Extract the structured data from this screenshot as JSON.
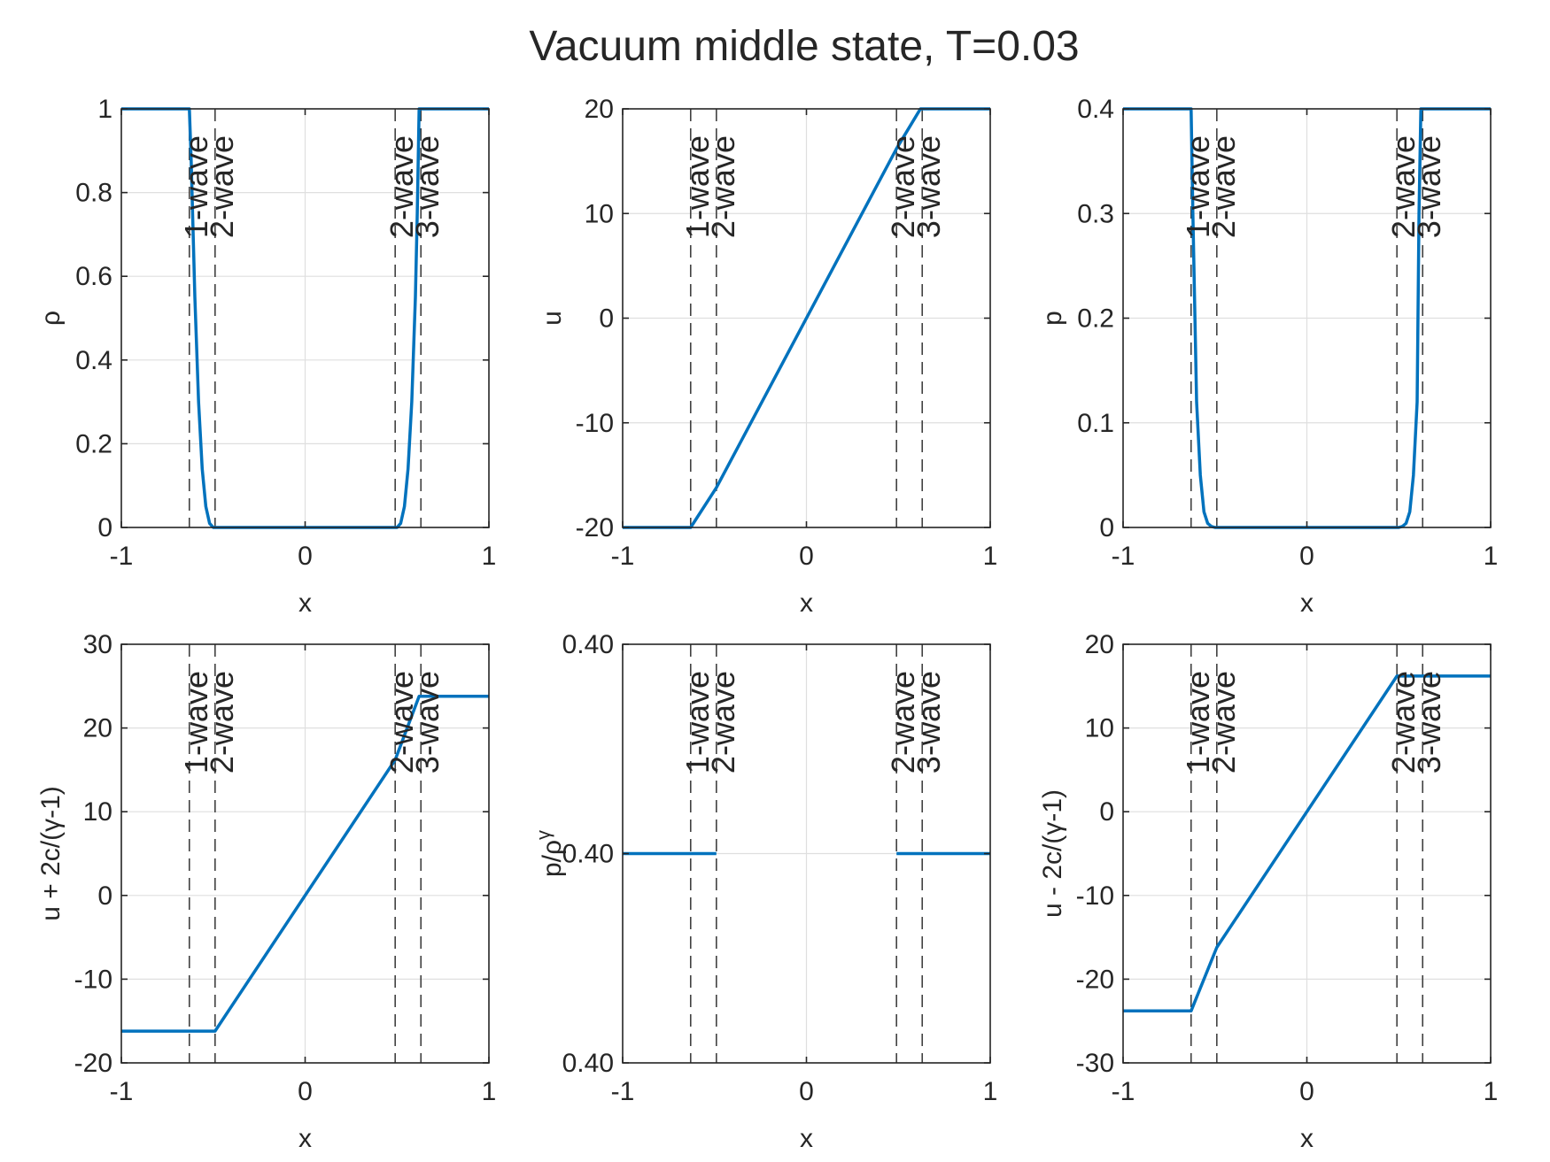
{
  "figure": {
    "title": "Vacuum middle state, T=0.03",
    "colors": {
      "series": "#0072BD",
      "axes": "#262626",
      "grid": "#DFDFDF",
      "wave_line": "#404040",
      "background": "#FFFFFF"
    }
  },
  "chart_data": [
    {
      "type": "line",
      "xlabel": "x",
      "ylabel": "ρ",
      "xlim": [
        -1,
        1
      ],
      "ylim": [
        0,
        1
      ],
      "xticks": [
        "-1",
        "0",
        "1"
      ],
      "yticks": [
        "0",
        "0.2",
        "0.4",
        "0.6",
        "0.8",
        "1"
      ],
      "grid": true,
      "series": [
        {
          "x": [
            -1,
            -0.63,
            -0.62,
            -0.6,
            -0.58,
            -0.56,
            -0.54,
            -0.52,
            -0.5,
            0.5,
            0.52,
            0.54,
            0.56,
            0.58,
            0.6,
            0.61,
            0.62,
            1
          ],
          "y": [
            1,
            1,
            0.88,
            0.55,
            0.3,
            0.14,
            0.05,
            0.01,
            0,
            0,
            0.01,
            0.05,
            0.14,
            0.3,
            0.55,
            0.75,
            1,
            1
          ]
        }
      ],
      "wave_positions": [
        -0.63,
        -0.49,
        0.49,
        0.63
      ],
      "wave_labels": [
        "1-wave",
        "2-wave",
        "2-wave",
        "3-wave"
      ]
    },
    {
      "type": "line",
      "xlabel": "x",
      "ylabel": "u",
      "xlim": [
        -1,
        1
      ],
      "ylim": [
        -20,
        20
      ],
      "xticks": [
        "-1",
        "0",
        "1"
      ],
      "yticks": [
        "-20",
        "-10",
        "0",
        "10",
        "20"
      ],
      "grid": true,
      "series": [
        {
          "x": [
            -1,
            -0.63,
            -0.49,
            0.49,
            0.62,
            1
          ],
          "y": [
            -20,
            -20,
            -16.2,
            16.2,
            20,
            20
          ]
        }
      ],
      "wave_positions": [
        -0.63,
        -0.49,
        0.49,
        0.63
      ],
      "wave_labels": [
        "1-wave",
        "2-wave",
        "2-wave",
        "3-wave"
      ]
    },
    {
      "type": "line",
      "xlabel": "x",
      "ylabel": "p",
      "xlim": [
        -1,
        1
      ],
      "ylim": [
        0,
        0.4
      ],
      "xticks": [
        "-1",
        "0",
        "1"
      ],
      "yticks": [
        "0",
        "0.1",
        "0.2",
        "0.3",
        "0.4"
      ],
      "grid": true,
      "series": [
        {
          "x": [
            -1,
            -0.63,
            -0.62,
            -0.6,
            -0.58,
            -0.56,
            -0.54,
            -0.52,
            -0.5,
            0.5,
            0.52,
            0.54,
            0.56,
            0.58,
            0.6,
            0.61,
            0.62,
            1
          ],
          "y": [
            0.4,
            0.4,
            0.3,
            0.12,
            0.05,
            0.015,
            0.004,
            0.001,
            0,
            0,
            0.001,
            0.004,
            0.015,
            0.05,
            0.12,
            0.3,
            0.4,
            0.4
          ]
        }
      ],
      "wave_positions": [
        -0.63,
        -0.49,
        0.49,
        0.63
      ],
      "wave_labels": [
        "1-wave",
        "2-wave",
        "2-wave",
        "3-wave"
      ]
    },
    {
      "type": "line",
      "xlabel": "x",
      "ylabel": "u + 2c/(γ-1)",
      "xlim": [
        -1,
        1
      ],
      "ylim": [
        -20,
        30
      ],
      "xticks": [
        "-1",
        "0",
        "1"
      ],
      "yticks": [
        "-20",
        "-10",
        "0",
        "10",
        "20",
        "30"
      ],
      "grid": true,
      "series": [
        {
          "x": [
            -1,
            -0.49,
            0.49,
            0.62,
            1
          ],
          "y": [
            -16.2,
            -16.2,
            16.2,
            23.8,
            23.8
          ]
        }
      ],
      "wave_positions": [
        -0.63,
        -0.49,
        0.49,
        0.63
      ],
      "wave_labels": [
        "1-wave",
        "2-wave",
        "2-wave",
        "3-wave"
      ]
    },
    {
      "type": "line",
      "xlabel": "x",
      "ylabel": "p/ρ^γ",
      "xlim": [
        -1,
        1
      ],
      "ylim": [
        0,
        1
      ],
      "xticks": [
        "-1",
        "0",
        "1"
      ],
      "yticks": [
        "0.40",
        "0.40",
        "0.40"
      ],
      "grid": true,
      "series": [
        {
          "x": [
            -1,
            -0.49
          ],
          "y": [
            0.5,
            0.5
          ]
        },
        {
          "x": [
            0.49,
            1
          ],
          "y": [
            0.5,
            0.5
          ]
        }
      ],
      "wave_positions": [
        -0.63,
        -0.49,
        0.49,
        0.63
      ],
      "wave_labels": [
        "1-wave",
        "2-wave",
        "2-wave",
        "3-wave"
      ]
    },
    {
      "type": "line",
      "xlabel": "x",
      "ylabel": "u - 2c/(γ-1)",
      "xlim": [
        -1,
        1
      ],
      "ylim": [
        -30,
        20
      ],
      "xticks": [
        "-1",
        "0",
        "1"
      ],
      "yticks": [
        "-30",
        "-20",
        "-10",
        "0",
        "10",
        "20"
      ],
      "grid": true,
      "series": [
        {
          "x": [
            -1,
            -0.63,
            -0.49,
            0.49,
            1
          ],
          "y": [
            -23.8,
            -23.8,
            -16.2,
            16.2,
            16.2
          ]
        }
      ],
      "wave_positions": [
        -0.63,
        -0.49,
        0.49,
        0.63
      ],
      "wave_labels": [
        "1-wave",
        "2-wave",
        "2-wave",
        "3-wave"
      ]
    }
  ]
}
